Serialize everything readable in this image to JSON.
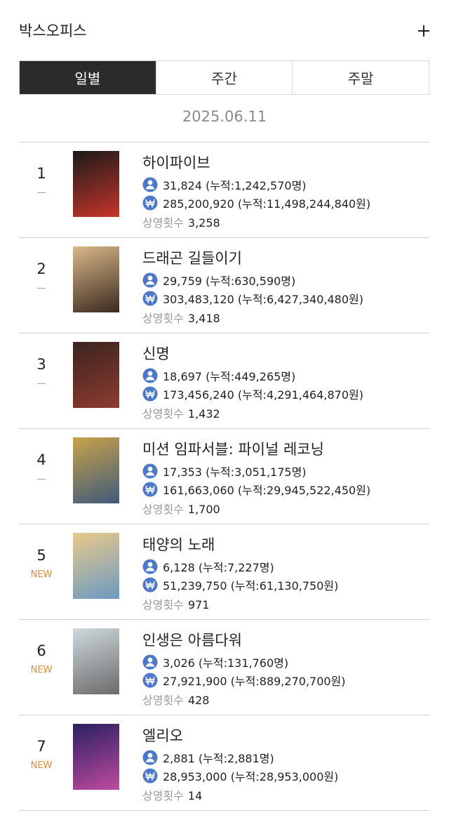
{
  "header": {
    "title": "박스오피스"
  },
  "tabs": [
    "일별",
    "주간",
    "주말"
  ],
  "date": "2025.06.11",
  "screen_label": "상영횟수",
  "movies": [
    {
      "rank": "1",
      "change": "—",
      "title": "하이파이브",
      "audience": "31,824 (누적:1,242,570명)",
      "revenue": "285,200,920 (누적:11,498,244,840원)",
      "screens": "3,258"
    },
    {
      "rank": "2",
      "change": "—",
      "title": "드래곤 길들이기",
      "audience": "29,759 (누적:630,590명)",
      "revenue": "303,483,120 (누적:6,427,340,480원)",
      "screens": "3,418"
    },
    {
      "rank": "3",
      "change": "—",
      "title": "신명",
      "audience": "18,697 (누적:449,265명)",
      "revenue": "173,456,240 (누적:4,291,464,870원)",
      "screens": "1,432"
    },
    {
      "rank": "4",
      "change": "—",
      "title": "미션 임파서블: 파이널 레코닝",
      "audience": "17,353 (누적:3,051,175명)",
      "revenue": "161,663,060 (누적:29,945,522,450원)",
      "screens": "1,700"
    },
    {
      "rank": "5",
      "change": "NEW",
      "title": "태양의 노래",
      "audience": "6,128 (누적:7,227명)",
      "revenue": "51,239,750 (누적:61,130,750원)",
      "screens": "971"
    },
    {
      "rank": "6",
      "change": "NEW",
      "title": "인생은 아름다워",
      "audience": "3,026 (누적:131,760명)",
      "revenue": "27,921,900 (누적:889,270,700원)",
      "screens": "428"
    },
    {
      "rank": "7",
      "change": "NEW",
      "title": "엘리오",
      "audience": "2,881 (누적:2,881명)",
      "revenue": "28,953,000 (누적:28,953,000원)",
      "screens": "14"
    }
  ]
}
